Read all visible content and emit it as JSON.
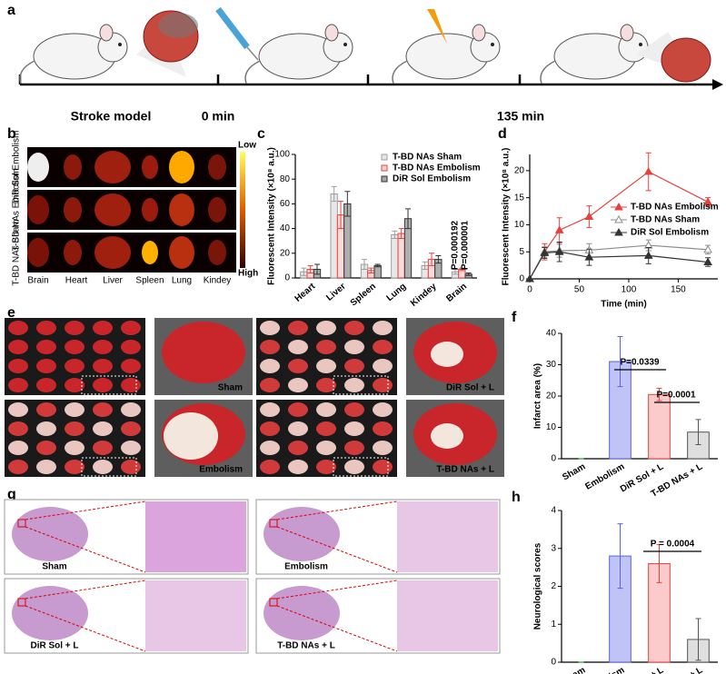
{
  "panel_labels": [
    "a",
    "b",
    "c",
    "d",
    "e",
    "f",
    "g",
    "h"
  ],
  "timeline": {
    "labels": [
      "Stroke model",
      "0 min",
      "135 min"
    ]
  },
  "imaging": {
    "rows": [
      "DiR Sol Embolism",
      "T-BD NAs Embolism",
      "T-BD NAs Sham"
    ],
    "organs": [
      "Brain",
      "Heart",
      "Liver",
      "Spleen",
      "Lung",
      "Kindey"
    ],
    "scale": [
      "Low",
      "High"
    ]
  },
  "ttc": {
    "labels": [
      "Sham",
      "DiR Sol + L",
      "Embolism",
      "T-BD NAs + L"
    ]
  },
  "histology": {
    "labels": [
      "Sham",
      "Embolism",
      "DiR Sol + L",
      "T-BD NAs + L"
    ]
  },
  "chart_data": [
    {
      "type": "bar",
      "ylabel": "Fluorescent Intensity (×10⁸ a.u.)",
      "categories": [
        "Heart",
        "Liver",
        "Spleen",
        "Lung",
        "Kindey",
        "Brain"
      ],
      "series": [
        {
          "name": "T-BD NAs Sham",
          "color": "#e6e6e6",
          "edge": "#9e9e9e",
          "values": [
            5,
            68,
            11,
            35,
            10,
            5
          ],
          "errors": [
            3,
            6,
            4,
            3,
            3,
            2
          ]
        },
        {
          "name": "T-BD NAs Embolism",
          "color": "#fbd5d5",
          "edge": "#e8413c",
          "values": [
            7,
            51,
            6,
            36,
            15,
            7
          ],
          "errors": [
            3,
            11,
            2,
            4,
            5,
            1
          ]
        },
        {
          "name": "DiR Sol Embolism",
          "color": "#a6a6a6",
          "edge": "#333333",
          "values": [
            7,
            60,
            10,
            48,
            15,
            3
          ],
          "errors": [
            4,
            10,
            1,
            8,
            3,
            1
          ]
        }
      ],
      "ylim": [
        0,
        100
      ],
      "yticks": [
        0,
        20,
        40,
        60,
        80,
        100
      ],
      "legend": "upper right",
      "annotations": [
        "P=0.000192",
        "P=0.000001"
      ]
    },
    {
      "type": "line",
      "xlabel": "Time (min)",
      "ylabel": "Fluorescent Intensity (×10⁸ a.u.)",
      "x": [
        0,
        15,
        30,
        60,
        120,
        180
      ],
      "series": [
        {
          "name": "T-BD NAs Embolism",
          "color": "#e8413c",
          "values": [
            0,
            5,
            9,
            11.5,
            19.8,
            14.2
          ],
          "errors": [
            0,
            1.5,
            2.3,
            2,
            3.5,
            0.8
          ]
        },
        {
          "name": "T-BD NAs Sham",
          "color": "#8c8c8c",
          "values": [
            0,
            5,
            5.2,
            5.3,
            6.2,
            5.4
          ],
          "errors": [
            0,
            1,
            1.2,
            1.2,
            1,
            0.8
          ]
        },
        {
          "name": "DiR Sol Embolism",
          "color": "#333333",
          "values": [
            0,
            4.8,
            5,
            4,
            4.3,
            3.1
          ],
          "errors": [
            0,
            1,
            1.8,
            1.5,
            1.5,
            0.8
          ]
        }
      ],
      "xlim": [
        0,
        190
      ],
      "xticks": [
        0,
        50,
        100,
        150
      ],
      "ylim": [
        0,
        23
      ],
      "yticks": [
        0,
        5,
        10,
        15,
        20
      ],
      "legend": "upper right"
    },
    {
      "type": "bar",
      "ylabel": "Infarct area (%)",
      "categories": [
        "Sham",
        "Embolism",
        "DiR Sol + L",
        "T-BD NAs + L"
      ],
      "values": [
        0,
        31,
        20.5,
        8.5
      ],
      "errors": [
        0,
        8,
        2,
        4
      ],
      "colors": [
        "#2ecc40",
        "#b8bdf5",
        "#fbc4c4",
        "#dcdcdc"
      ],
      "edges": [
        "#2ecc40",
        "#5b63e0",
        "#e8413c",
        "#555555"
      ],
      "ylim": [
        0,
        40
      ],
      "yticks": [
        0,
        10,
        20,
        30,
        40
      ],
      "annotations": [
        "P=0.0339",
        "P=0.0001"
      ]
    },
    {
      "type": "bar",
      "ylabel": "Neurological scores",
      "categories": [
        "Sham",
        "Embolism",
        "DiR Sol + L",
        "T-BD NAs + L"
      ],
      "values": [
        0,
        2.8,
        2.6,
        0.6
      ],
      "errors": [
        0,
        0.85,
        0.5,
        0.55
      ],
      "colors": [
        "#2ecc40",
        "#b8bdf5",
        "#fbc4c4",
        "#dcdcdc"
      ],
      "edges": [
        "#2ecc40",
        "#5b63e0",
        "#e8413c",
        "#555555"
      ],
      "ylim": [
        0,
        4
      ],
      "yticks": [
        0,
        1,
        2,
        3,
        4
      ],
      "annotations": [
        "P = 0.0004"
      ]
    }
  ]
}
